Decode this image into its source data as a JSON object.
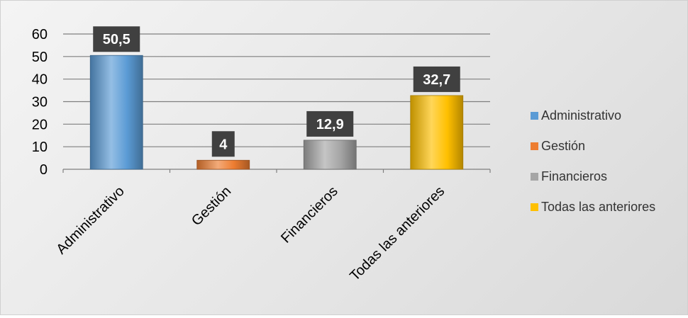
{
  "chart_data": {
    "type": "bar",
    "categories": [
      "Administrativo",
      "Gestión",
      "Financieros",
      "Todas las anteriores"
    ],
    "values": [
      50.5,
      4,
      12.9,
      32.7
    ],
    "data_labels": [
      "50,5",
      "4",
      "12,9",
      "32,7"
    ],
    "colors": [
      "#5b9bd5",
      "#ed7d31",
      "#a5a5a5",
      "#ffc000"
    ],
    "ylim": [
      0,
      60
    ],
    "yticks": [
      "0",
      "10",
      "20",
      "30",
      "40",
      "50",
      "60"
    ],
    "grid": true,
    "legend_position": "right",
    "legend": [
      "Administrativo",
      "Gestión",
      "Financieros",
      "Todas las anteriores"
    ]
  }
}
